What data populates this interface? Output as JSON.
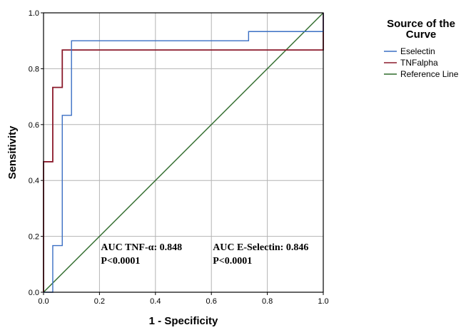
{
  "chart_data": {
    "type": "line",
    "title": "",
    "xlabel": "1 - Specificity",
    "ylabel": "Sensitivity",
    "xlim": [
      0.0,
      1.0
    ],
    "ylim": [
      0.0,
      1.0
    ],
    "x_ticks": [
      "0.0",
      "0.2",
      "0.4",
      "0.6",
      "0.8",
      "1.0"
    ],
    "y_ticks": [
      "0.0",
      "0.2",
      "0.4",
      "0.6",
      "0.8",
      "1.0"
    ],
    "grid": true,
    "legend": {
      "title_lines": [
        "Source of the",
        "Curve"
      ],
      "position": "right"
    },
    "series": [
      {
        "name": "Eselectin",
        "color": "#3a6fc4",
        "points": [
          [
            0.0,
            0.0
          ],
          [
            0.033,
            0.0
          ],
          [
            0.033,
            0.167
          ],
          [
            0.067,
            0.167
          ],
          [
            0.067,
            0.633
          ],
          [
            0.1,
            0.633
          ],
          [
            0.1,
            0.9
          ],
          [
            0.733,
            0.9
          ],
          [
            0.733,
            0.933
          ],
          [
            1.0,
            0.933
          ],
          [
            1.0,
            1.0
          ]
        ]
      },
      {
        "name": "TNFalpha",
        "color": "#8b1a2b",
        "points": [
          [
            0.0,
            0.0
          ],
          [
            0.0,
            0.467
          ],
          [
            0.033,
            0.467
          ],
          [
            0.033,
            0.733
          ],
          [
            0.067,
            0.733
          ],
          [
            0.067,
            0.867
          ],
          [
            1.0,
            0.867
          ],
          [
            1.0,
            1.0
          ]
        ]
      },
      {
        "name": "Reference Line",
        "color": "#2e6b2a",
        "points": [
          [
            0.0,
            0.0
          ],
          [
            1.0,
            1.0
          ]
        ]
      }
    ],
    "annotations": [
      {
        "lines": [
          "AUC TNF-α: 0.848",
          "P<0.0001"
        ],
        "x": 0.2,
        "y": 0.1
      },
      {
        "lines": [
          "AUC E-Selectin: 0.846",
          "P<0.0001"
        ],
        "x": 0.6,
        "y": 0.1
      }
    ]
  }
}
